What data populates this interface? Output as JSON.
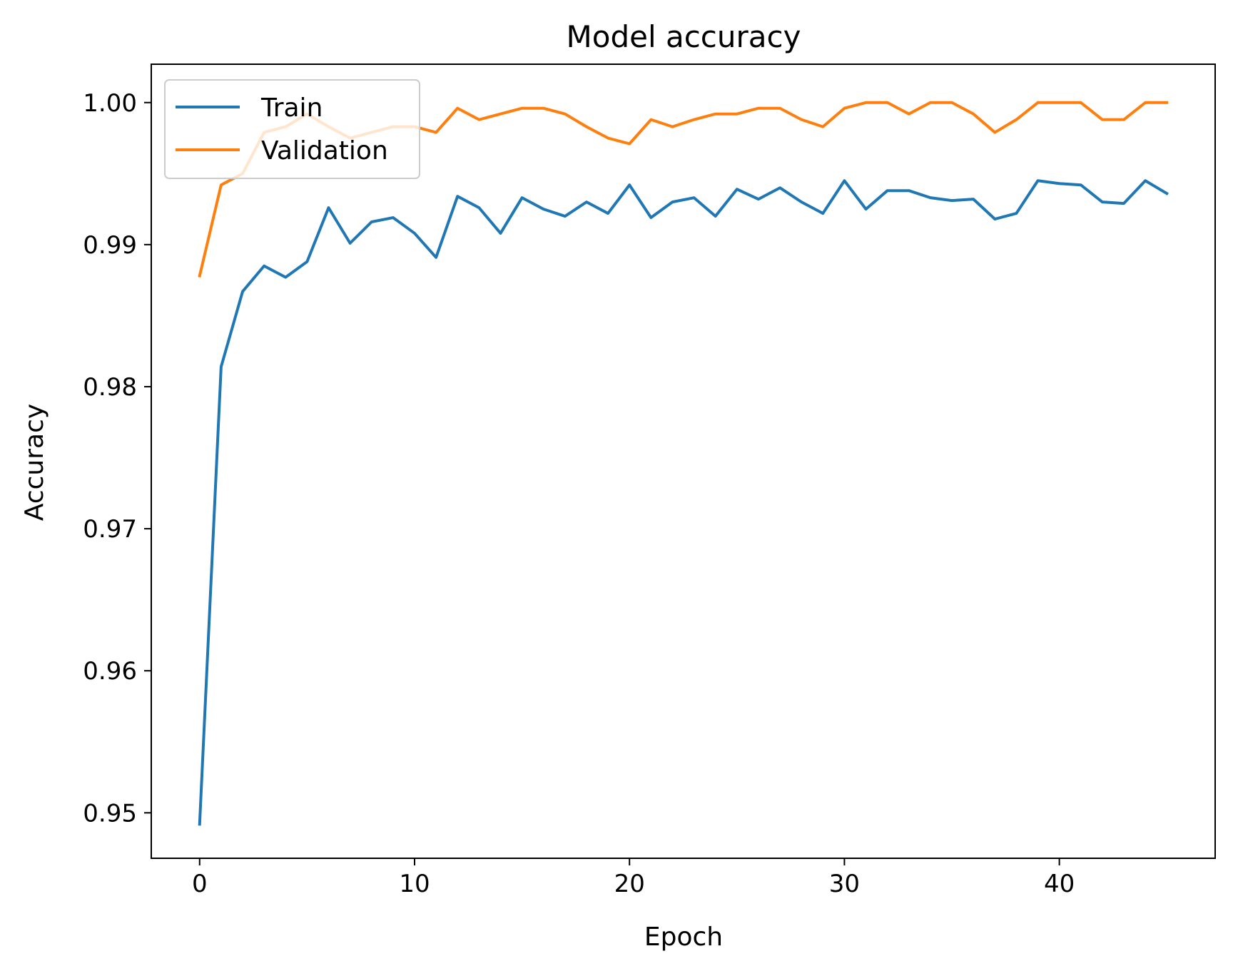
{
  "chart_data": {
    "type": "line",
    "title": "Model accuracy",
    "xlabel": "Epoch",
    "ylabel": "Accuracy",
    "xlim": [
      -2.25,
      47.25
    ],
    "ylim": [
      0.9468,
      1.0027
    ],
    "xticks": [
      0,
      10,
      20,
      30,
      40
    ],
    "xtick_labels": [
      "0",
      "10",
      "20",
      "30",
      "40"
    ],
    "yticks": [
      0.95,
      0.96,
      0.97,
      0.98,
      0.99,
      1.0
    ],
    "ytick_labels": [
      "0.95",
      "0.96",
      "0.97",
      "0.98",
      "0.99",
      "1.00"
    ],
    "grid": false,
    "legend_position": "upper-left",
    "x": [
      0,
      1,
      2,
      3,
      4,
      5,
      6,
      7,
      8,
      9,
      10,
      11,
      12,
      13,
      14,
      15,
      16,
      17,
      18,
      19,
      20,
      21,
      22,
      23,
      24,
      25,
      26,
      27,
      28,
      29,
      30,
      31,
      32,
      33,
      34,
      35,
      36,
      37,
      38,
      39,
      40,
      41,
      42,
      43,
      44,
      45
    ],
    "series": [
      {
        "name": "Train",
        "color": "#1f77b4",
        "values": [
          0.9492,
          0.9814,
          0.9867,
          0.9885,
          0.9877,
          0.9888,
          0.9926,
          0.9901,
          0.9916,
          0.9919,
          0.9908,
          0.9891,
          0.9934,
          0.9926,
          0.9908,
          0.9933,
          0.9925,
          0.992,
          0.993,
          0.9922,
          0.9942,
          0.9919,
          0.993,
          0.9933,
          0.992,
          0.9939,
          0.9932,
          0.994,
          0.993,
          0.9922,
          0.9945,
          0.9925,
          0.9938,
          0.9938,
          0.9933,
          0.9931,
          0.9932,
          0.9918,
          0.9922,
          0.9945,
          0.9943,
          0.9942,
          0.993,
          0.9929,
          0.9945,
          0.9936
        ]
      },
      {
        "name": "Validation",
        "color": "#ff7f0e",
        "values": [
          0.9878,
          0.9942,
          0.995,
          0.9979,
          0.9983,
          0.9992,
          0.9983,
          0.9975,
          0.9979,
          0.9983,
          0.9983,
          0.9979,
          0.9996,
          0.9988,
          0.9992,
          0.9996,
          0.9996,
          0.9992,
          0.9983,
          0.9975,
          0.9971,
          0.9988,
          0.9983,
          0.9988,
          0.9992,
          0.9992,
          0.9996,
          0.9996,
          0.9988,
          0.9983,
          0.9996,
          1.0,
          1.0,
          0.9992,
          1.0,
          1.0,
          0.9992,
          0.9979,
          0.9988,
          1.0,
          1.0,
          1.0,
          0.9988,
          0.9988,
          1.0,
          1.0
        ]
      }
    ]
  }
}
